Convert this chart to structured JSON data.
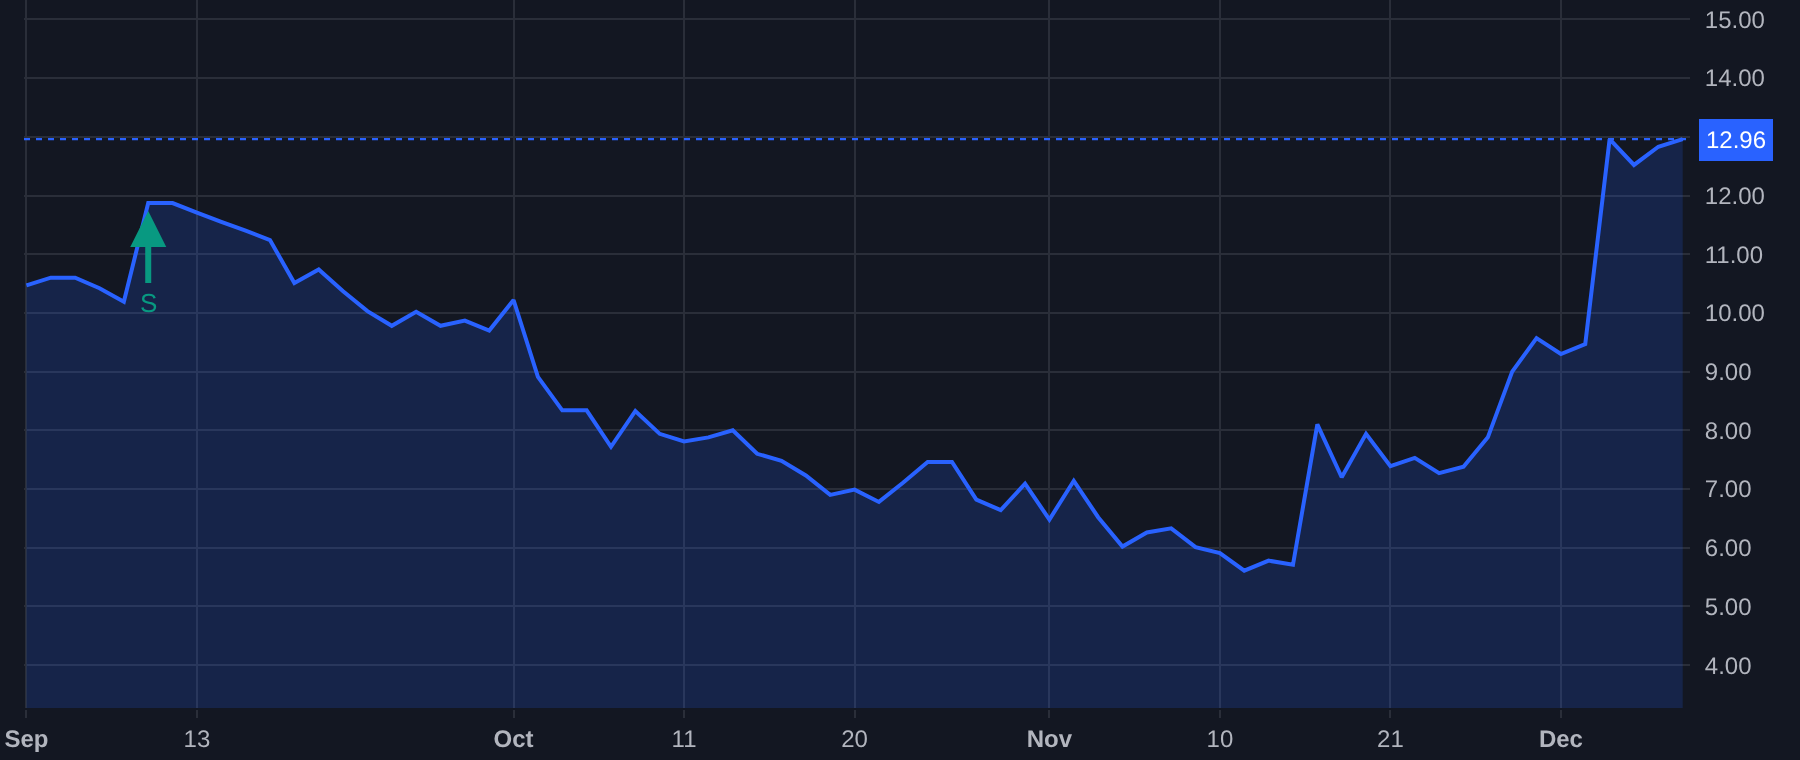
{
  "chart_data": {
    "type": "area",
    "categories": [
      "Sep",
      null,
      null,
      null,
      null,
      null,
      null,
      "13",
      null,
      null,
      null,
      null,
      null,
      null,
      null,
      null,
      null,
      null,
      null,
      null,
      "Oct",
      null,
      null,
      null,
      null,
      null,
      null,
      "11",
      null,
      null,
      null,
      null,
      null,
      null,
      "20",
      null,
      null,
      null,
      null,
      null,
      null,
      null,
      "Nov",
      null,
      null,
      null,
      null,
      null,
      null,
      "10",
      null,
      null,
      null,
      null,
      null,
      null,
      "21",
      null,
      null,
      null,
      null,
      null,
      null,
      "Dec",
      null,
      null,
      null,
      null,
      null
    ],
    "series": [
      {
        "color": "#2962ff",
        "values": [
          10.47,
          10.6,
          10.6,
          10.42,
          10.19,
          11.87,
          11.87,
          11.71,
          11.55,
          11.4,
          11.24,
          10.51,
          10.74,
          10.37,
          10.03,
          9.78,
          10.02,
          9.78,
          9.87,
          9.7,
          10.22,
          8.91,
          8.34,
          8.34,
          7.72,
          8.33,
          7.94,
          7.81,
          7.88,
          8.0,
          7.6,
          7.48,
          7.23,
          6.9,
          6.99,
          6.78,
          7.11,
          7.46,
          7.46,
          6.82,
          6.64,
          7.09,
          6.48,
          7.14,
          6.52,
          6.02,
          6.26,
          6.33,
          6.01,
          5.91,
          5.61,
          5.78,
          5.71,
          8.1,
          7.2,
          7.94,
          7.39,
          7.53,
          7.27,
          7.38,
          7.88,
          9.0,
          9.57,
          9.3,
          9.47,
          12.96,
          12.52,
          12.83,
          12.96
        ]
      }
    ],
    "ylim": [
      3.27,
      15.33
    ],
    "yticks": [
      {
        "value": 4,
        "label": "4.00"
      },
      {
        "value": 5,
        "label": "5.00"
      },
      {
        "value": 6,
        "label": "6.00"
      },
      {
        "value": 7,
        "label": "7.00"
      },
      {
        "value": 8,
        "label": "8.00"
      },
      {
        "value": 9,
        "label": "9.00"
      },
      {
        "value": 10,
        "label": "10.00"
      },
      {
        "value": 11,
        "label": "11.00"
      },
      {
        "value": 12,
        "label": "12.00"
      },
      {
        "value": 13,
        "label": null
      },
      {
        "value": 14,
        "label": "14.00"
      },
      {
        "value": 15,
        "label": "15.00"
      }
    ],
    "ref_lines": [
      {
        "axis": "y",
        "value": 12.96,
        "label": "12.96",
        "color": "#2962ff",
        "line_style": "dotted"
      }
    ],
    "annotations": [
      {
        "text": "S",
        "y": 11.87
      }
    ],
    "grid": true
  }
}
